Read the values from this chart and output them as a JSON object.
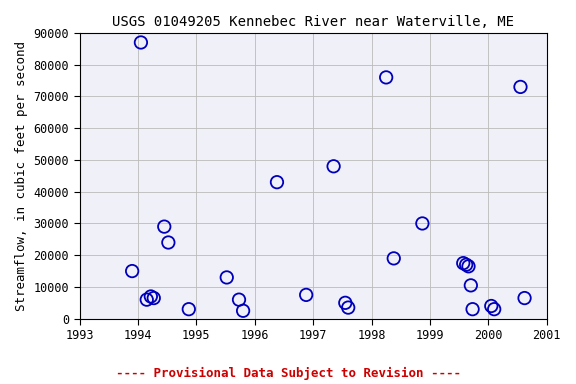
{
  "title": "USGS 01049205 Kennebec River near Waterville, ME",
  "ylabel": "Streamflow, in cubic feet per second",
  "footnote": "---- Provisional Data Subject to Revision ----",
  "xlim": [
    1993,
    2001
  ],
  "ylim": [
    0,
    90000
  ],
  "xticks": [
    1993,
    1994,
    1995,
    1996,
    1997,
    1998,
    1999,
    2000,
    2001
  ],
  "yticks": [
    0,
    10000,
    20000,
    30000,
    40000,
    50000,
    60000,
    70000,
    80000,
    90000
  ],
  "marker_color": "#0000BB",
  "marker_style": "o",
  "marker_size": 5,
  "marker_linewidth": 1.3,
  "grid_color": "#bbbbbb",
  "bg_color": "#ffffff",
  "plot_bg_color": "#f0f0f8",
  "footnote_color": "#cc0000",
  "x_data": [
    1993.9,
    1994.05,
    1994.15,
    1994.22,
    1994.27,
    1994.45,
    1994.52,
    1994.87,
    1995.52,
    1995.73,
    1995.8,
    1996.38,
    1996.88,
    1997.35,
    1997.55,
    1997.6,
    1998.25,
    1998.38,
    1998.87,
    1999.57,
    1999.62,
    1999.66,
    1999.7,
    1999.73,
    2000.05,
    2000.1,
    2000.55,
    2000.62
  ],
  "y_data": [
    15000,
    87000,
    6000,
    7000,
    6500,
    29000,
    24000,
    3000,
    13000,
    6000,
    2500,
    43000,
    7500,
    48000,
    5000,
    3500,
    76000,
    19000,
    30000,
    17500,
    17000,
    16500,
    10500,
    3000,
    4000,
    3000,
    73000,
    6500
  ],
  "title_fontsize": 10,
  "axis_label_fontsize": 9,
  "tick_fontsize": 8.5,
  "footnote_fontsize": 9
}
